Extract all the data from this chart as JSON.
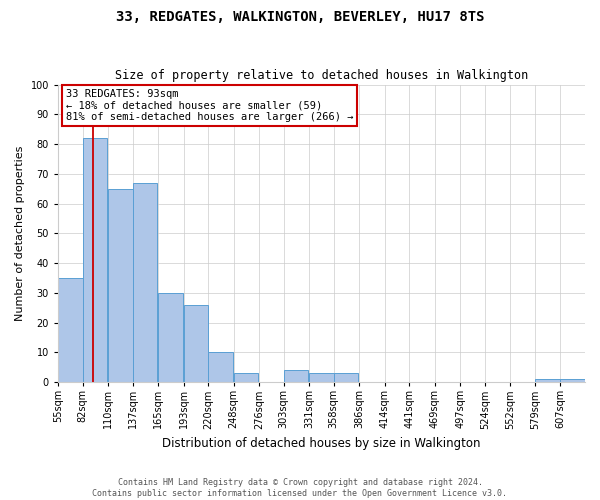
{
  "title": "33, REDGATES, WALKINGTON, BEVERLEY, HU17 8TS",
  "subtitle": "Size of property relative to detached houses in Walkington",
  "xlabel": "Distribution of detached houses by size in Walkington",
  "ylabel": "Number of detached properties",
  "footer_line1": "Contains HM Land Registry data © Crown copyright and database right 2024.",
  "footer_line2": "Contains public sector information licensed under the Open Government Licence v3.0.",
  "annotation_line1": "33 REDGATES: 93sqm",
  "annotation_line2": "← 18% of detached houses are smaller (59)",
  "annotation_line3": "81% of semi-detached houses are larger (266) →",
  "red_line_x": 93,
  "categories": [
    "55sqm",
    "82sqm",
    "110sqm",
    "137sqm",
    "165sqm",
    "193sqm",
    "220sqm",
    "248sqm",
    "276sqm",
    "303sqm",
    "331sqm",
    "358sqm",
    "386sqm",
    "414sqm",
    "441sqm",
    "469sqm",
    "497sqm",
    "524sqm",
    "552sqm",
    "579sqm",
    "607sqm"
  ],
  "bin_edges": [
    55,
    82,
    110,
    137,
    165,
    193,
    220,
    248,
    276,
    303,
    331,
    358,
    386,
    414,
    441,
    469,
    497,
    524,
    552,
    579,
    607
  ],
  "values": [
    35,
    82,
    65,
    67,
    30,
    26,
    10,
    3,
    0,
    4,
    3,
    3,
    0,
    0,
    0,
    0,
    0,
    0,
    0,
    1,
    1
  ],
  "bar_color": "#aec6e8",
  "bar_edge_color": "#5a9fd4",
  "red_line_color": "#cc0000",
  "annotation_box_color": "#cc0000",
  "background_color": "#ffffff",
  "ylim": [
    0,
    100
  ],
  "yticks": [
    0,
    10,
    20,
    30,
    40,
    50,
    60,
    70,
    80,
    90,
    100
  ],
  "title_fontsize": 10,
  "subtitle_fontsize": 8.5,
  "ylabel_fontsize": 8,
  "xlabel_fontsize": 8.5,
  "tick_fontsize": 7,
  "annotation_fontsize": 7.5,
  "footer_fontsize": 6
}
